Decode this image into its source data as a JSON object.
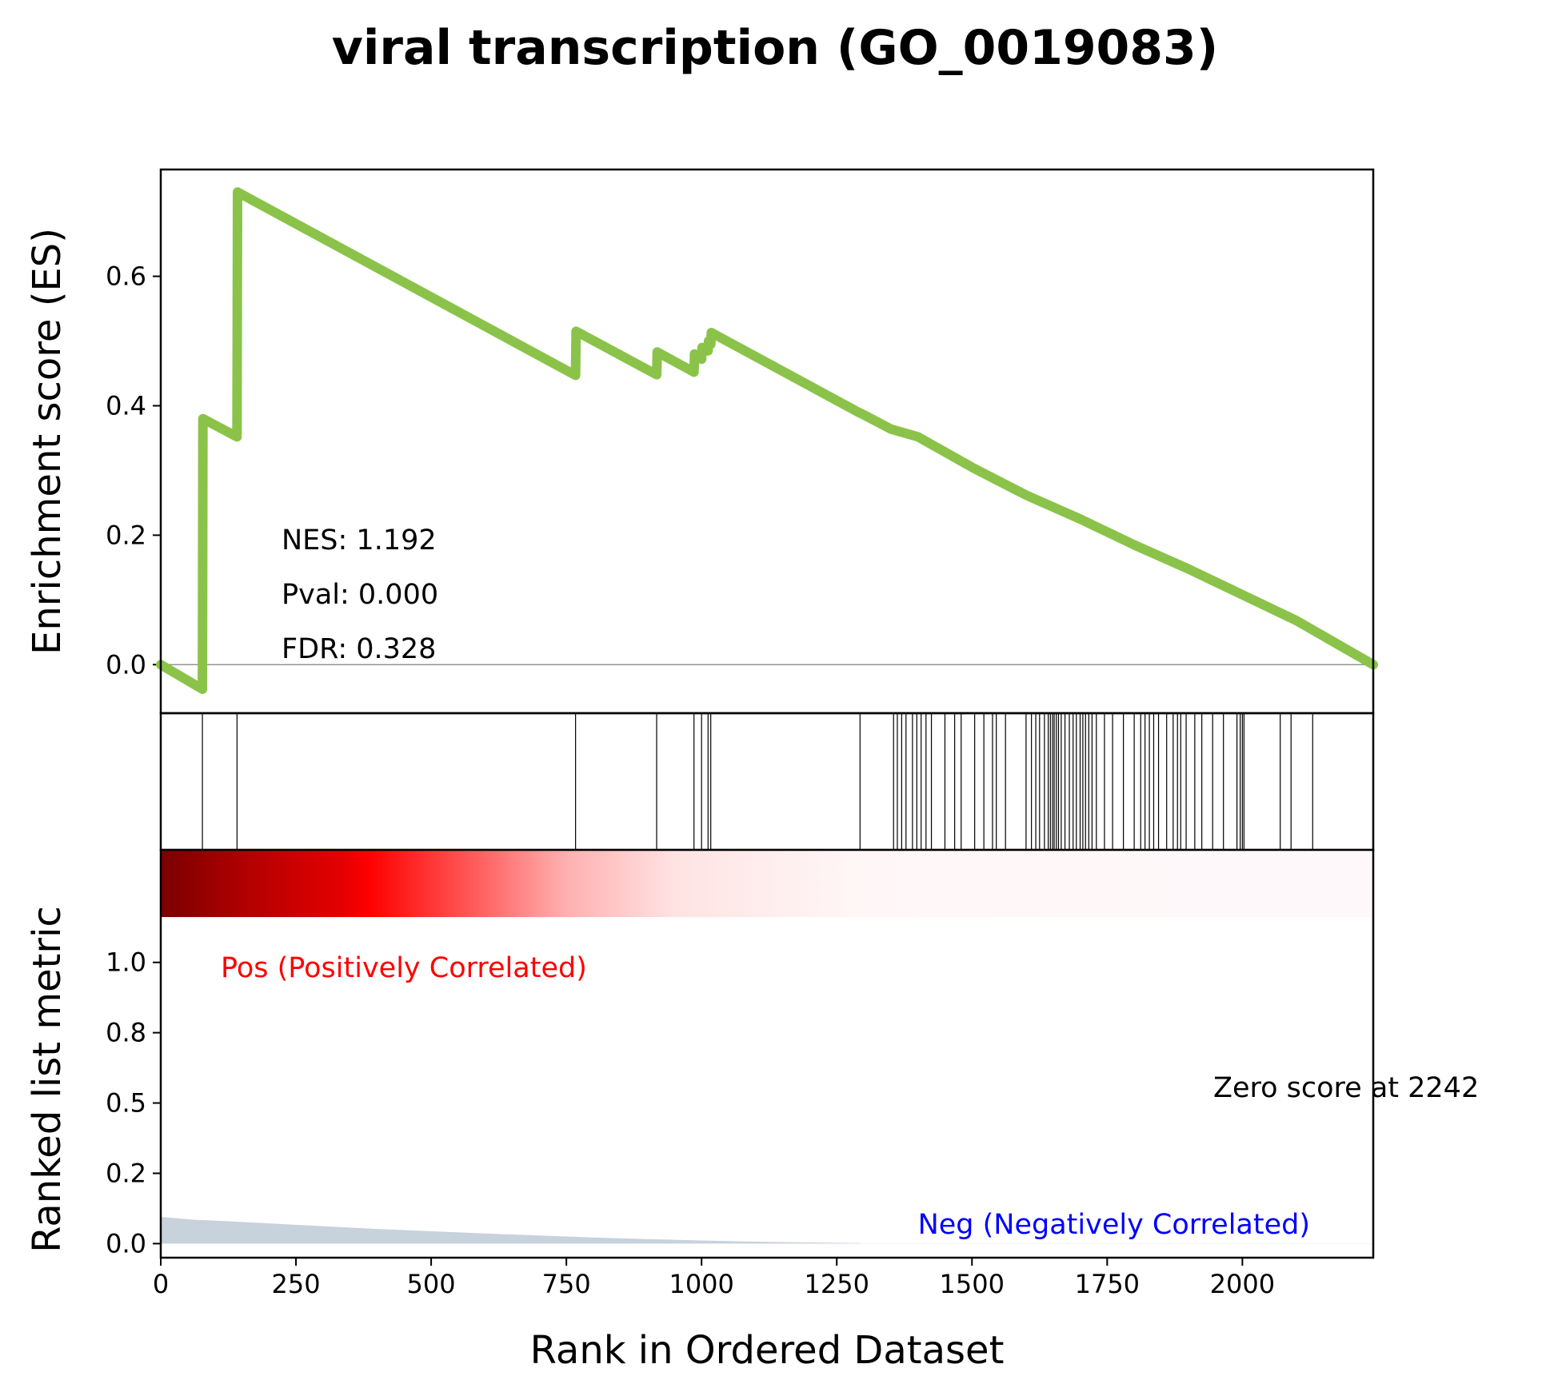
{
  "chart_data": {
    "type": "line",
    "title": "viral transcription (GO_0019083)",
    "xlabel": "Rank in Ordered Dataset",
    "xlim": [
      0,
      2242
    ],
    "x_ticks": [
      0,
      250,
      500,
      750,
      1000,
      1250,
      1500,
      1750,
      2000
    ],
    "es_panel": {
      "ylabel": "Enrichment score (ES)",
      "ylim": [
        -0.075,
        0.765
      ],
      "y_ticks": [
        0.0,
        0.2,
        0.4,
        0.6
      ],
      "y_tick_labels": [
        "0.0",
        "0.2",
        "0.4",
        "0.6"
      ],
      "line_color": "#8bc34a",
      "series": [
        {
          "x": [
            0,
            77,
            78,
            141,
            142,
            767,
            768,
            917,
            918,
            986,
            987,
            1000,
            1001,
            1012,
            1013,
            1017,
            1018,
            1290,
            1300,
            1350,
            1400,
            1500,
            1600,
            1700,
            1800,
            1900,
            2000,
            2100,
            2242
          ],
          "y": [
            0.0,
            -0.038,
            0.38,
            0.352,
            0.73,
            0.447,
            0.515,
            0.448,
            0.483,
            0.452,
            0.48,
            0.472,
            0.49,
            0.485,
            0.5,
            0.495,
            0.513,
            0.39,
            0.386,
            0.364,
            0.352,
            0.305,
            0.262,
            0.225,
            0.185,
            0.148,
            0.108,
            0.068,
            0.0
          ]
        }
      ],
      "annotations": {
        "nes": "NES: 1.192",
        "pval": "Pval: 0.000",
        "fdr": "FDR: 0.328"
      }
    },
    "hits": [
      77,
      141,
      767,
      917,
      986,
      1000,
      1012,
      1017,
      1293,
      1355,
      1362,
      1370,
      1378,
      1390,
      1398,
      1406,
      1415,
      1425,
      1450,
      1468,
      1480,
      1505,
      1522,
      1538,
      1545,
      1562,
      1600,
      1610,
      1618,
      1625,
      1634,
      1641,
      1645,
      1649,
      1652,
      1656,
      1660,
      1665,
      1672,
      1680,
      1687,
      1693,
      1700,
      1705,
      1710,
      1716,
      1722,
      1730,
      1745,
      1760,
      1780,
      1800,
      1812,
      1820,
      1828,
      1836,
      1845,
      1860,
      1872,
      1880,
      1886,
      1896,
      1912,
      1925,
      1945,
      1965,
      1990,
      1996,
      2000,
      2003,
      2070,
      2090,
      2130
    ],
    "ranked_panel": {
      "ylabel": "Ranked list metric",
      "ylim": [
        -0.05,
        1.4
      ],
      "y_ticks": [
        0.0,
        0.25,
        0.5,
        0.75,
        1.0
      ],
      "y_tick_labels": [
        "0.0",
        "0.2",
        "0.5",
        "0.8",
        "1.0"
      ],
      "fill_color": "#c8d2dc",
      "metric": {
        "x": [
          0,
          30,
          60,
          120,
          200,
          300,
          400,
          500,
          600,
          700,
          800,
          900,
          1000,
          1100,
          1200,
          1293,
          1294,
          2242
        ],
        "y": [
          0.095,
          0.09,
          0.085,
          0.08,
          0.072,
          0.062,
          0.052,
          0.044,
          0.036,
          0.029,
          0.022,
          0.016,
          0.011,
          0.007,
          0.004,
          0.002,
          0.001,
          0.001
        ]
      },
      "zero_score_label": "Zero score at 2242",
      "pos_label": "Pos (Positively Correlated)",
      "neg_label": "Neg (Negatively Correlated)",
      "pos_color": "#ff0000",
      "neg_color": "#0000ff",
      "heat_colors": [
        "#7a0000",
        "#b20000",
        "#e60000",
        "#ff0000",
        "#ff6060",
        "#ffb0b0",
        "#ffe3e3",
        "#fff7f7",
        "#fff8fb"
      ],
      "heat_stops": [
        0,
        0.07,
        0.15,
        0.17,
        0.26,
        0.33,
        0.42,
        0.57,
        1.0
      ],
      "heat_positive_end": 1293
    }
  }
}
